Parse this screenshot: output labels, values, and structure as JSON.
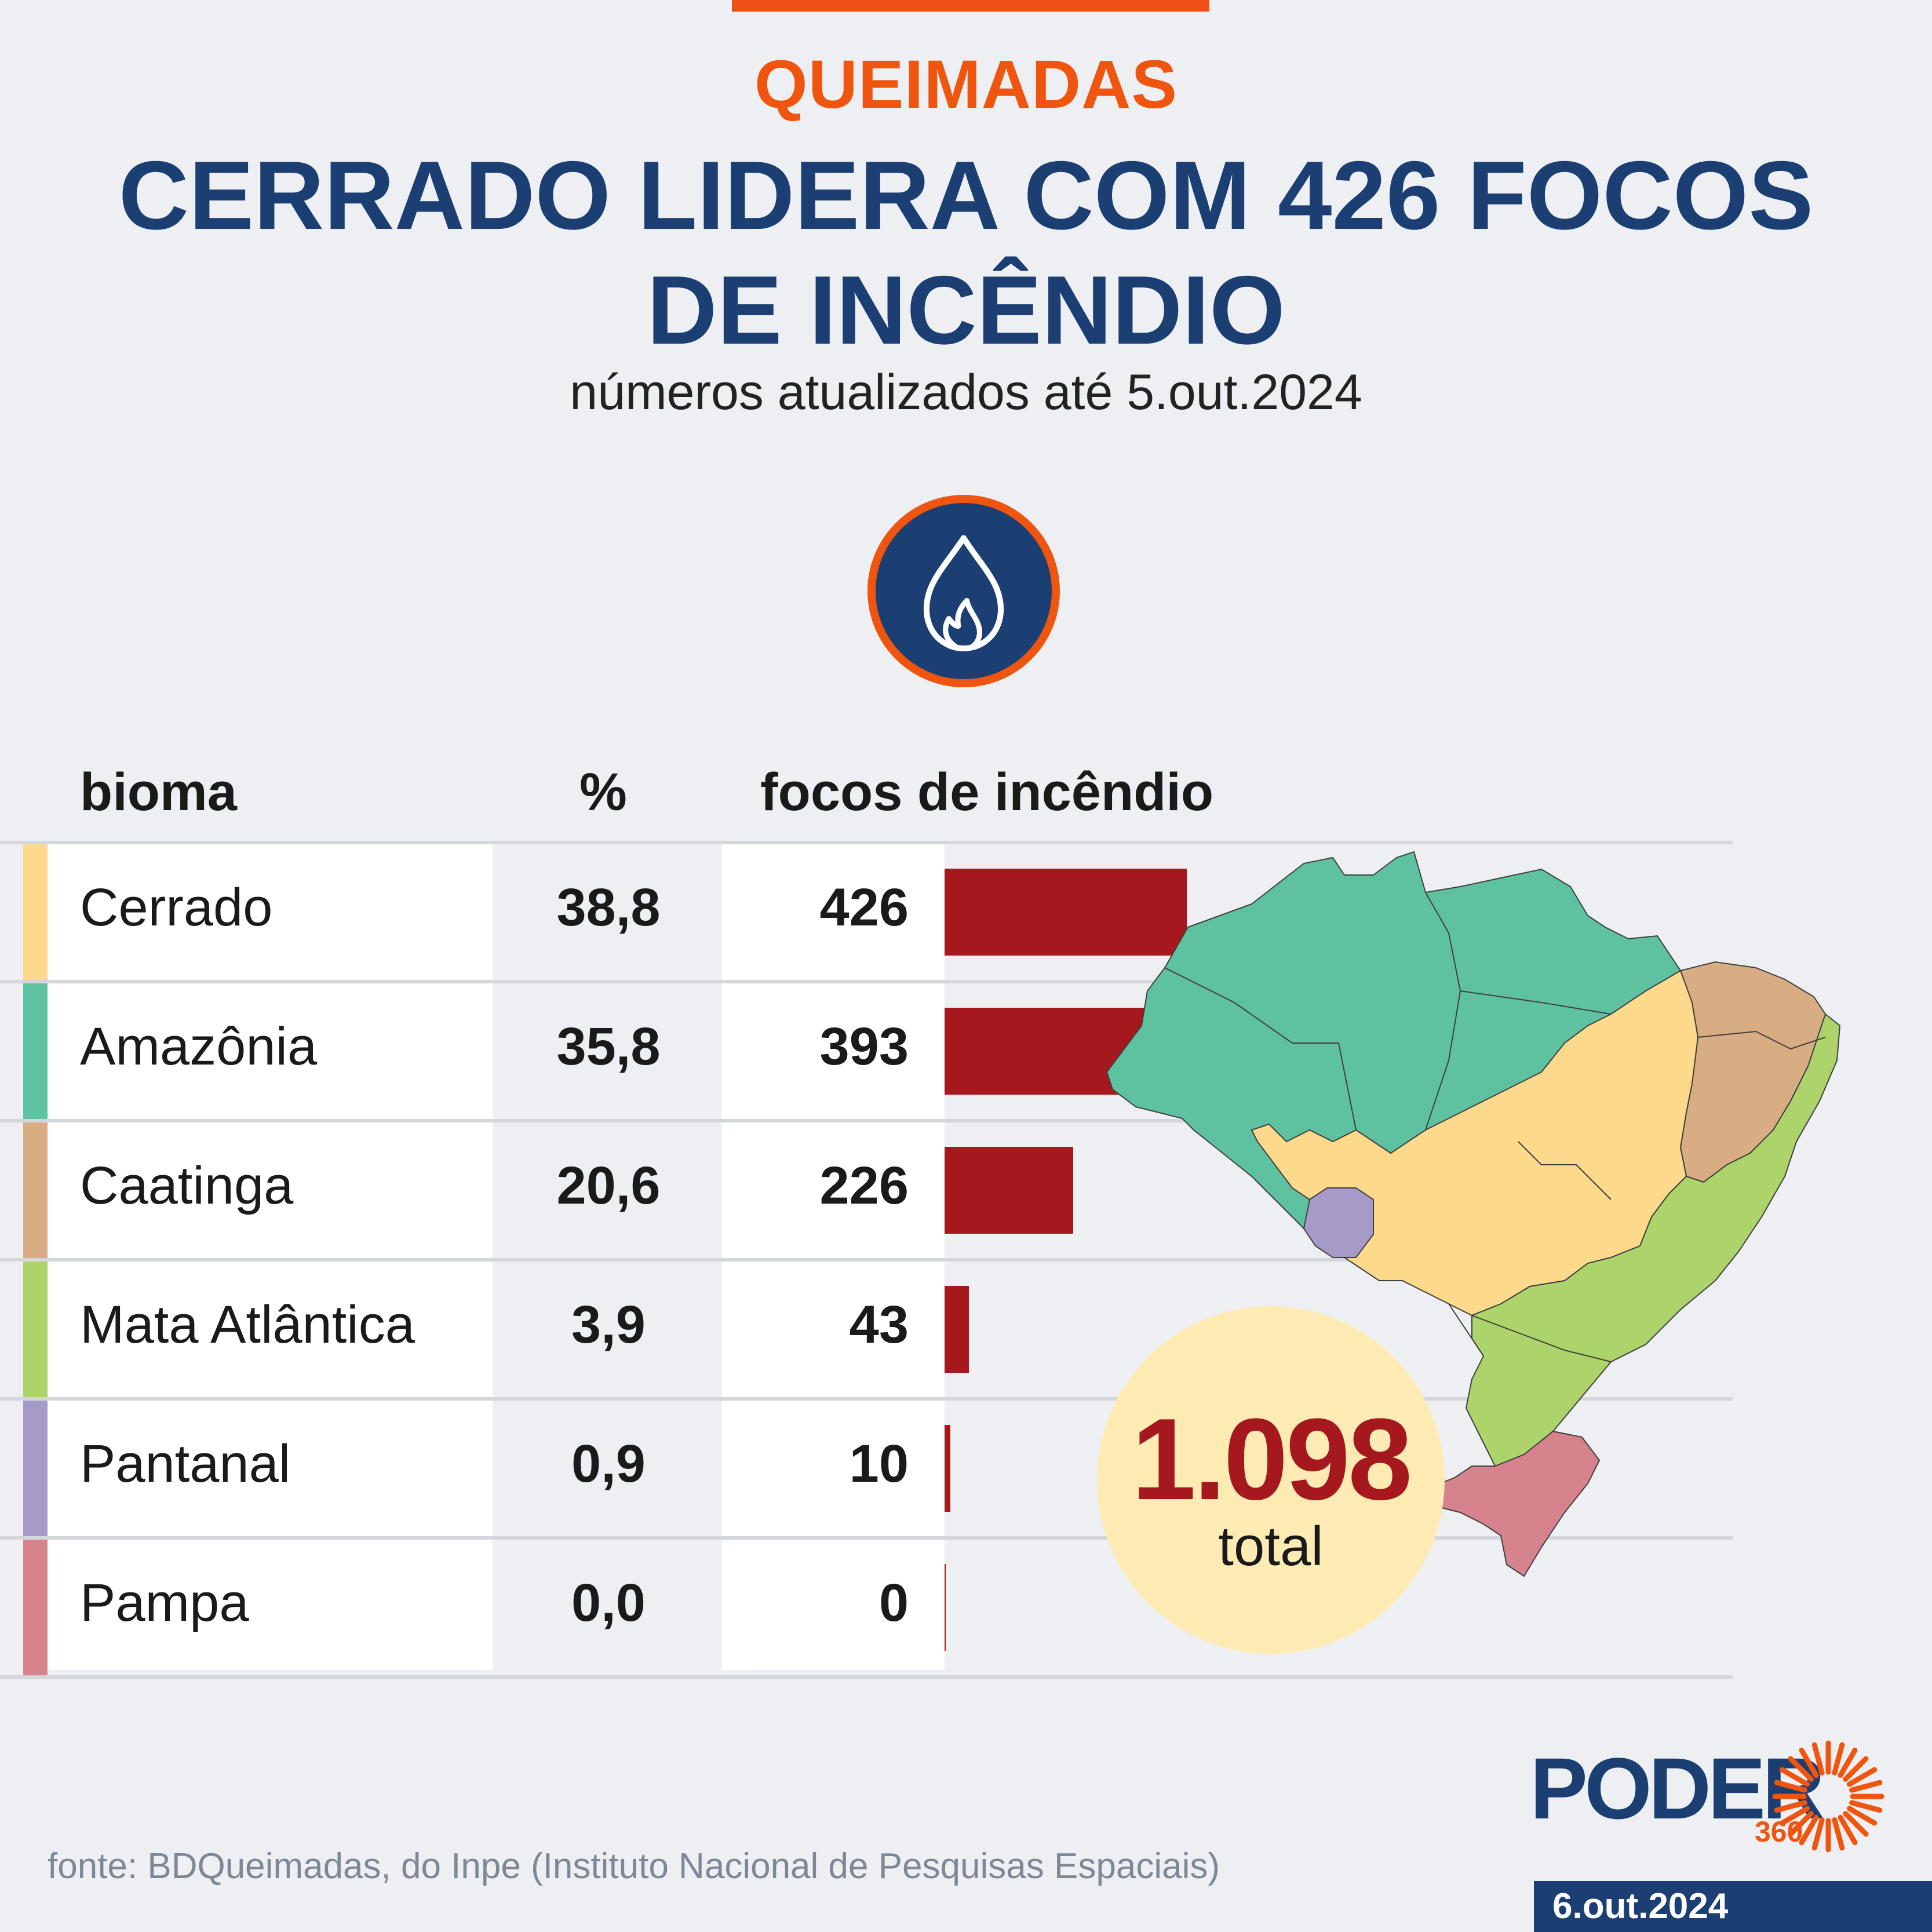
{
  "header": {
    "kicker": "QUEIMADAS",
    "headline_line1": "CERRADO LIDERA COM 426 FOCOS",
    "headline_line2": "DE INCÊNDIO",
    "subtitle": "números atualizados até 5.out.2024"
  },
  "table": {
    "col_bioma": "bioma",
    "col_pct": "%",
    "col_focos": "focos de incêndio"
  },
  "chart_data": {
    "type": "bar",
    "orientation": "horizontal",
    "categories": [
      "Cerrado",
      "Amazônia",
      "Caatinga",
      "Mata Atlântica",
      "Pantanal",
      "Pampa"
    ],
    "pct_labels": [
      "38,8",
      "35,8",
      "20,6",
      "3,9",
      "0,9",
      "0,0"
    ],
    "value_labels": [
      "426",
      "393",
      "226",
      "43",
      "10",
      "0"
    ],
    "values": [
      426,
      393,
      226,
      43,
      10,
      0
    ],
    "colors": [
      "#fdd98c",
      "#5ec1a0",
      "#d9ad84",
      "#add46a",
      "#a69ac8",
      "#d6838e"
    ],
    "bar_color": "#a5191e",
    "xlim": [
      0,
      426
    ]
  },
  "total": {
    "value": "1.098",
    "label": "total"
  },
  "footer": {
    "source": "fonte: BDQueimadas, do Inpe (Instituto Nacional de Pesquisas Espaciais)",
    "logo_text": "PODER",
    "logo_sub": "360",
    "date": "6.out.2024"
  }
}
